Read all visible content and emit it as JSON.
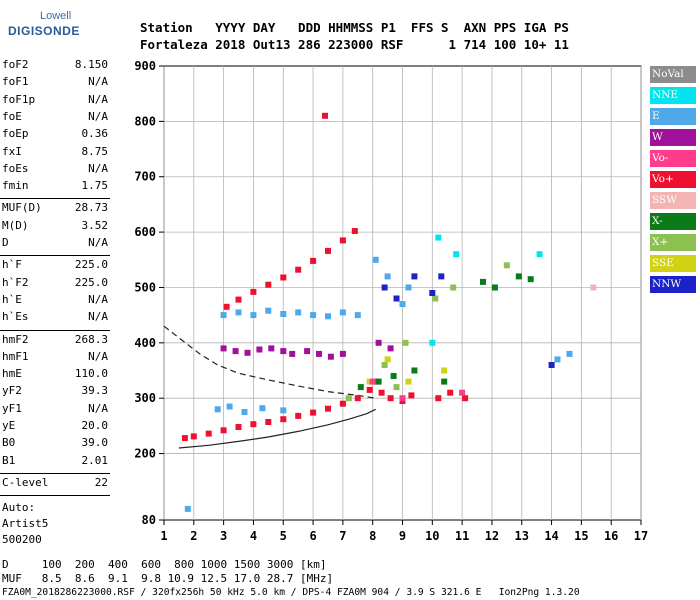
{
  "logo": {
    "line1": "Lowell",
    "line2": "DIGISONDE"
  },
  "header": {
    "row1": "Station   YYYY DAY   DDD HHMMSS P1  FFS S  AXN PPS IGA PS",
    "row2": "Fortaleza 2018 Out13 286 223000 RSF      1 714 100 10+ 11"
  },
  "params": {
    "group1": [
      {
        "name": "foF2",
        "value": "8.150"
      },
      {
        "name": "foF1",
        "value": "N/A"
      },
      {
        "name": "foF1p",
        "value": "N/A"
      },
      {
        "name": "foE",
        "value": "N/A"
      },
      {
        "name": "foEp",
        "value": "0.36"
      },
      {
        "name": "fxI",
        "value": "8.75"
      },
      {
        "name": "foEs",
        "value": "N/A"
      },
      {
        "name": "fmin",
        "value": "1.75"
      }
    ],
    "group2": [
      {
        "name": "MUF(D)",
        "value": "28.73"
      },
      {
        "name": "M(D)",
        "value": "3.52"
      },
      {
        "name": "D",
        "value": "N/A"
      }
    ],
    "group3": [
      {
        "name": "h`F",
        "value": "225.0"
      },
      {
        "name": "h`F2",
        "value": "225.0"
      },
      {
        "name": "h`E",
        "value": "N/A"
      },
      {
        "name": "h`Es",
        "value": "N/A"
      }
    ],
    "group4": [
      {
        "name": "hmF2",
        "value": "268.3"
      },
      {
        "name": "hmF1",
        "value": "N/A"
      },
      {
        "name": "hmE",
        "value": "110.0"
      },
      {
        "name": "yF2",
        "value": "39.3"
      },
      {
        "name": "yF1",
        "value": "N/A"
      },
      {
        "name": "yE",
        "value": "20.0"
      },
      {
        "name": "B0",
        "value": "39.0"
      },
      {
        "name": "B1",
        "value": "2.01"
      }
    ],
    "group5": [
      {
        "name": "C-level",
        "value": "22"
      }
    ],
    "auto": [
      "Auto:",
      "Artist5",
      "500200"
    ]
  },
  "legend": [
    {
      "label": "NoVal",
      "color": "#8c8c8c",
      "text_color": "#ffffff"
    },
    {
      "label": "NNE",
      "color": "#00e5ee",
      "text_color": "#ffffff"
    },
    {
      "label": "E",
      "color": "#4fa8e8",
      "text_color": "#ffffff"
    },
    {
      "label": "W",
      "color": "#a0109a",
      "text_color": "#ffffff"
    },
    {
      "label": "Vo-",
      "color": "#ff3c8c",
      "text_color": "#ffffff"
    },
    {
      "label": "Vo+",
      "color": "#ee1030",
      "text_color": "#ffffff"
    },
    {
      "label": "SSW",
      "color": "#f4b4b4",
      "text_color": "#ffffff"
    },
    {
      "label": "X-",
      "color": "#0c7a18",
      "text_color": "#ffffff"
    },
    {
      "label": "X+",
      "color": "#8cc050",
      "text_color": "#ffffff"
    },
    {
      "label": "SSE",
      "color": "#d2d214",
      "text_color": "#ffffff"
    },
    {
      "label": "NNW",
      "color": "#1a22c8",
      "text_color": "#ffffff"
    }
  ],
  "bottom": {
    "d_row": "D     100  200  400  600  800 1000 1500 3000 [km]",
    "muf_row": "MUF   8.5  8.6  9.1  9.8 10.9 12.5 17.0 28.7 [MHz]",
    "footer": "FZA0M_2018286223000.RSF / 320fx256h 50 kHz 5.0 km / DPS-4 FZA0M 904 / 3.9 S 321.6 E   Ion2Png 1.3.20"
  },
  "chart_data": {
    "type": "scatter",
    "title": "",
    "xlabel": "",
    "ylabel": "",
    "xlim": [
      1,
      17
    ],
    "ylim": [
      80,
      900
    ],
    "x_ticks": [
      1,
      2,
      3,
      4,
      5,
      6,
      7,
      8,
      9,
      10,
      11,
      12,
      13,
      14,
      15,
      16,
      17
    ],
    "y_ticks": [
      80,
      200,
      300,
      400,
      500,
      600,
      700,
      800,
      900
    ],
    "grid": true,
    "legend_position": "right",
    "series": [
      {
        "name": "Vo+",
        "points": [
          [
            1.7,
            228
          ],
          [
            2.0,
            231
          ],
          [
            2.5,
            236
          ],
          [
            3.0,
            242
          ],
          [
            3.5,
            248
          ],
          [
            4.0,
            253
          ],
          [
            4.5,
            257
          ],
          [
            5.0,
            262
          ],
          [
            5.5,
            268
          ],
          [
            6.0,
            274
          ],
          [
            6.5,
            281
          ],
          [
            7.0,
            290
          ],
          [
            7.5,
            300
          ],
          [
            7.9,
            315
          ],
          [
            3.1,
            465
          ],
          [
            3.5,
            478
          ],
          [
            4.0,
            492
          ],
          [
            4.5,
            505
          ],
          [
            5.0,
            518
          ],
          [
            5.5,
            532
          ],
          [
            6.0,
            548
          ],
          [
            6.5,
            566
          ],
          [
            7.0,
            585
          ],
          [
            7.4,
            602
          ],
          [
            8.1,
            330
          ],
          [
            8.3,
            310
          ],
          [
            8.6,
            300
          ],
          [
            9.0,
            295
          ],
          [
            9.3,
            305
          ],
          [
            10.2,
            300
          ],
          [
            10.6,
            310
          ],
          [
            11.1,
            300
          ],
          [
            6.4,
            810
          ]
        ]
      },
      {
        "name": "E",
        "points": [
          [
            3.0,
            450
          ],
          [
            3.5,
            455
          ],
          [
            4.0,
            450
          ],
          [
            4.5,
            458
          ],
          [
            5.0,
            452
          ],
          [
            5.5,
            455
          ],
          [
            6.0,
            450
          ],
          [
            6.5,
            448
          ],
          [
            7.0,
            455
          ],
          [
            7.5,
            450
          ],
          [
            2.8,
            280
          ],
          [
            3.2,
            285
          ],
          [
            3.7,
            275
          ],
          [
            4.3,
            282
          ],
          [
            5.0,
            278
          ],
          [
            1.8,
            100
          ],
          [
            8.1,
            550
          ],
          [
            8.5,
            520
          ],
          [
            9.0,
            470
          ],
          [
            9.2,
            500
          ],
          [
            14.2,
            370
          ],
          [
            14.6,
            380
          ]
        ]
      },
      {
        "name": "W",
        "points": [
          [
            3.0,
            390
          ],
          [
            3.4,
            385
          ],
          [
            3.8,
            382
          ],
          [
            4.2,
            388
          ],
          [
            4.6,
            390
          ],
          [
            5.0,
            385
          ],
          [
            5.3,
            380
          ],
          [
            5.8,
            385
          ],
          [
            6.2,
            380
          ],
          [
            6.6,
            375
          ],
          [
            7.0,
            380
          ],
          [
            8.2,
            400
          ],
          [
            8.6,
            390
          ]
        ]
      },
      {
        "name": "X-",
        "points": [
          [
            7.6,
            320
          ],
          [
            8.2,
            330
          ],
          [
            8.7,
            340
          ],
          [
            9.4,
            350
          ],
          [
            10.4,
            330
          ],
          [
            11.7,
            510
          ],
          [
            12.1,
            500
          ],
          [
            12.9,
            520
          ],
          [
            13.3,
            515
          ]
        ]
      },
      {
        "name": "X+",
        "points": [
          [
            7.2,
            300
          ],
          [
            8.4,
            360
          ],
          [
            8.8,
            320
          ],
          [
            9.1,
            400
          ],
          [
            10.1,
            480
          ],
          [
            10.7,
            500
          ],
          [
            12.5,
            540
          ]
        ]
      },
      {
        "name": "SSE",
        "points": [
          [
            7.9,
            330
          ],
          [
            8.5,
            370
          ],
          [
            9.2,
            330
          ],
          [
            10.4,
            350
          ]
        ]
      },
      {
        "name": "NNW",
        "points": [
          [
            8.4,
            500
          ],
          [
            8.8,
            480
          ],
          [
            9.4,
            520
          ],
          [
            10.0,
            490
          ],
          [
            10.3,
            520
          ],
          [
            14.0,
            360
          ]
        ]
      },
      {
        "name": "NNE",
        "points": [
          [
            10.2,
            590
          ],
          [
            10.8,
            560
          ],
          [
            10.0,
            400
          ],
          [
            13.6,
            560
          ]
        ]
      },
      {
        "name": "Vo-",
        "points": [
          [
            8.0,
            330
          ],
          [
            9.0,
            300
          ],
          [
            11.0,
            310
          ]
        ]
      },
      {
        "name": "SSW",
        "points": [
          [
            15.4,
            500
          ]
        ]
      }
    ],
    "profile_solid": [
      [
        1.5,
        210
      ],
      [
        2.5,
        215
      ],
      [
        3.5,
        222
      ],
      [
        4.5,
        230
      ],
      [
        5.5,
        240
      ],
      [
        6.5,
        252
      ],
      [
        7.2,
        262
      ],
      [
        7.8,
        272
      ],
      [
        8.1,
        280
      ]
    ],
    "profile_dashed": [
      [
        1.0,
        430
      ],
      [
        1.6,
        405
      ],
      [
        2.2,
        380
      ],
      [
        2.8,
        360
      ],
      [
        3.5,
        345
      ],
      [
        4.5,
        333
      ],
      [
        5.5,
        322
      ],
      [
        6.5,
        312
      ],
      [
        7.5,
        305
      ],
      [
        8.1,
        300
      ]
    ]
  }
}
